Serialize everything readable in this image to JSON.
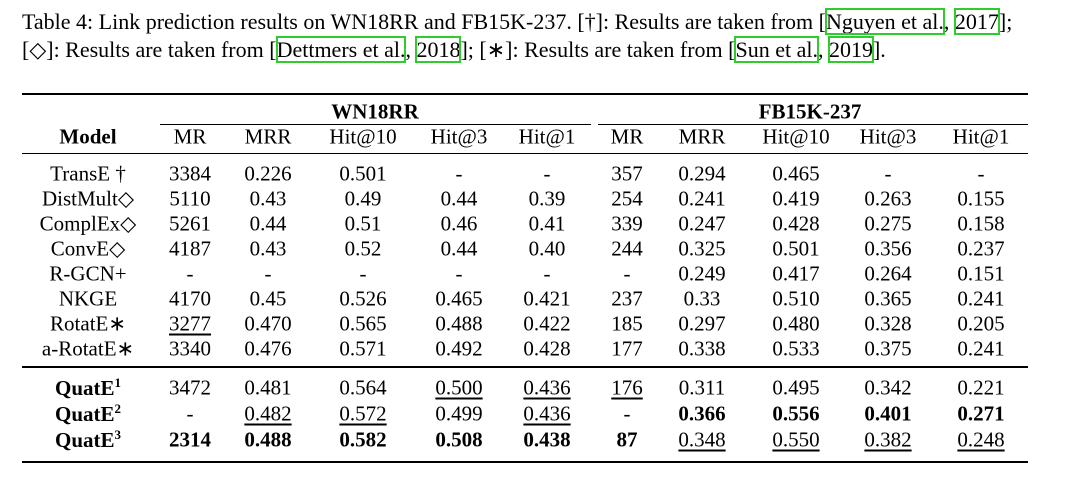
{
  "caption": [
    "Table 4: Link prediction results on WN18RR and FB15K-237. [†]: Results are taken from [",
    "Nguyen et al.",
    ", ",
    "2017",
    "]; [◇]: Results are taken from [",
    "Dettmers et al.",
    ", ",
    "2018",
    "]; [∗]: Results are taken from [",
    "Sun et al.",
    ", ",
    "2019",
    "]."
  ],
  "table": {
    "groups": [
      "WN18RR",
      "FB15K-237"
    ],
    "columns": [
      "Model",
      "MR",
      "MRR",
      "Hit@10",
      "Hit@3",
      "Hit@1",
      "MR",
      "MRR",
      "Hit@10",
      "Hit@3",
      "Hit@1"
    ],
    "rows": [
      {
        "model": "TransE †",
        "values": [
          "3384",
          "0.226",
          "0.501",
          "-",
          "-",
          "357",
          "0.294",
          "0.465",
          "-",
          "-"
        ]
      },
      {
        "model": "DistMult◇",
        "values": [
          "5110",
          "0.43",
          "0.49",
          "0.44",
          "0.39",
          "254",
          "0.241",
          "0.419",
          "0.263",
          "0.155"
        ]
      },
      {
        "model": "ComplEx◇",
        "values": [
          "5261",
          "0.44",
          "0.51",
          "0.46",
          "0.41",
          "339",
          "0.247",
          "0.428",
          "0.275",
          "0.158"
        ]
      },
      {
        "model": "ConvE◇",
        "values": [
          "4187",
          "0.43",
          "0.52",
          "0.44",
          "0.40",
          "244",
          "0.325",
          "0.501",
          "0.356",
          "0.237"
        ]
      },
      {
        "model": "R-GCN+",
        "values": [
          "-",
          "-",
          "-",
          "-",
          "-",
          "-",
          "0.249",
          "0.417",
          "0.264",
          "0.151"
        ]
      },
      {
        "model": "NKGE",
        "values": [
          "4170",
          "0.45",
          "0.526",
          "0.465",
          "0.421",
          "237",
          "0.33",
          "0.510",
          "0.365",
          "0.241"
        ]
      },
      {
        "model": "RotatE∗",
        "values": [
          "3277",
          "0.470",
          "0.565",
          "0.488",
          "0.422",
          "185",
          "0.297",
          "0.480",
          "0.328",
          "0.205"
        ]
      },
      {
        "model": "a-RotatE∗",
        "values": [
          "3340",
          "0.476",
          "0.571",
          "0.492",
          "0.428",
          "177",
          "0.338",
          "0.533",
          "0.375",
          "0.241"
        ]
      },
      {
        "model": "QuatE",
        "sup": "1",
        "values": [
          "3472",
          "0.481",
          "0.564",
          "0.500",
          "0.436",
          "176",
          "0.311",
          "0.495",
          "0.342",
          "0.221"
        ]
      },
      {
        "model": "QuatE",
        "sup": "2",
        "values": [
          "-",
          "0.482",
          "0.572",
          "0.499",
          "0.436",
          "-",
          "0.366",
          "0.556",
          "0.401",
          "0.271"
        ]
      },
      {
        "model": "QuatE",
        "sup": "3",
        "values": [
          "2314",
          "0.488",
          "0.582",
          "0.508",
          "0.438",
          "87",
          "0.348",
          "0.550",
          "0.382",
          "0.248"
        ]
      }
    ]
  }
}
